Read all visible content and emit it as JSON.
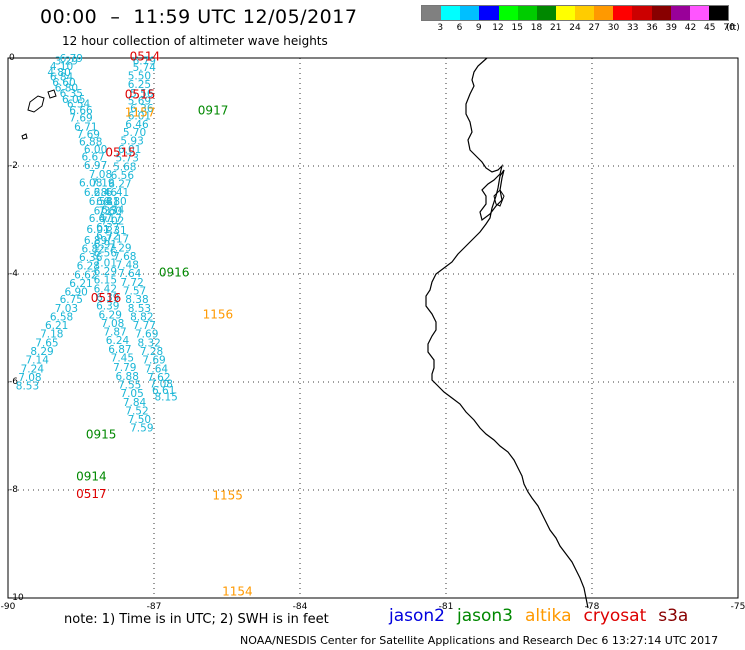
{
  "header": {
    "title": "00:00  –  11:59 UTC 12/05/2017",
    "subtitle": "12 hour collection of altimeter wave heights"
  },
  "colorbar": {
    "colors": [
      "#808080",
      "#00ffff",
      "#00bfff",
      "#0000ff",
      "#00ff00",
      "#00cc00",
      "#008800",
      "#ffff00",
      "#ffcc00",
      "#ff9900",
      "#ff0000",
      "#cc0000",
      "#880000",
      "#990099",
      "#ff55ff",
      "#000000"
    ],
    "labels": [
      "3",
      "6",
      "9",
      "12",
      "15",
      "18",
      "21",
      "24",
      "27",
      "30",
      "33",
      "36",
      "39",
      "42",
      "45",
      "70"
    ],
    "unit": "(ft)"
  },
  "chart_data": {
    "type": "scatter",
    "xlim": [
      -90,
      -75
    ],
    "ylim": [
      -10,
      0
    ],
    "xticks": [
      "-90",
      "-87",
      "-84",
      "-81",
      "-78",
      "-75"
    ],
    "yticks": [
      "0",
      "-2",
      "-4",
      "-6",
      "-8",
      "-10"
    ],
    "grid": true,
    "series": [
      {
        "name": "A",
        "color": "#1ab6d6",
        "points": [
          [
            -88.7,
            -0.07,
            "6.79"
          ],
          [
            -88.8,
            -0.12,
            "3.29"
          ],
          [
            -88.9,
            -0.22,
            "4.10"
          ],
          [
            -88.95,
            -0.33,
            "4.80"
          ],
          [
            -88.9,
            -0.42,
            "6.84"
          ],
          [
            -88.85,
            -0.52,
            "6.60"
          ],
          [
            -88.8,
            -0.62,
            "6.80"
          ],
          [
            -88.7,
            -0.72,
            "6.35"
          ],
          [
            -88.65,
            -0.83,
            "6.05"
          ],
          [
            -88.55,
            -0.92,
            "6.54"
          ],
          [
            -88.5,
            -1.04,
            "6.66"
          ],
          [
            -88.5,
            -1.18,
            "7.69"
          ],
          [
            -88.4,
            -1.34,
            "6.71"
          ],
          [
            -88.35,
            -1.48,
            "7.69"
          ],
          [
            -88.3,
            -1.62,
            "6.88"
          ],
          [
            -88.2,
            -1.76,
            "6.00"
          ],
          [
            -88.25,
            -1.9,
            "6.67"
          ],
          [
            -88.2,
            -2.06,
            "6.97"
          ],
          [
            -88.1,
            -2.22,
            "7.08"
          ],
          [
            -88.05,
            -2.38,
            "7.19"
          ],
          [
            -88.0,
            -2.56,
            "6.46"
          ],
          [
            -87.95,
            -2.72,
            "6.81"
          ],
          [
            -87.9,
            -2.9,
            "7.60"
          ],
          [
            -87.85,
            -3.08,
            "7.02"
          ],
          [
            -87.8,
            -3.26,
            "7.31"
          ],
          [
            -87.75,
            -3.42,
            "7.17"
          ],
          [
            -87.7,
            -3.58,
            "7.29"
          ],
          [
            -87.6,
            -3.74,
            "7.68"
          ],
          [
            -87.55,
            -3.9,
            "7.48"
          ],
          [
            -87.5,
            -4.06,
            "7.64"
          ],
          [
            -87.45,
            -4.22,
            "7.72"
          ],
          [
            -87.4,
            -4.38,
            "7.57"
          ],
          [
            -87.35,
            -4.54,
            "8.38"
          ],
          [
            -87.3,
            -4.7,
            "8.53"
          ],
          [
            -87.25,
            -4.86,
            "8.82"
          ],
          [
            -87.2,
            -5.02,
            "7.77"
          ],
          [
            -87.15,
            -5.18,
            "7.69"
          ],
          [
            -87.1,
            -5.34,
            "8.32"
          ],
          [
            -87.05,
            -5.5,
            "7.28"
          ],
          [
            -87.0,
            -5.66,
            "7.69"
          ],
          [
            -86.95,
            -5.82,
            "7.64"
          ],
          [
            -86.9,
            -5.98,
            "7.62"
          ],
          [
            -86.85,
            -6.1,
            "7.08"
          ],
          [
            -86.8,
            -6.22,
            "6.61"
          ],
          [
            -86.75,
            -6.34,
            "8.15"
          ]
        ]
      },
      {
        "name": "B",
        "color": "#1ab6d6",
        "points": [
          [
            -87.2,
            -0.12,
            "6.79"
          ],
          [
            -87.2,
            -0.24,
            "5.74"
          ],
          [
            -87.3,
            -0.4,
            "5.50"
          ],
          [
            -87.3,
            -0.56,
            "6.25"
          ],
          [
            -87.25,
            -0.72,
            "5.56"
          ],
          [
            -87.3,
            -0.86,
            "5.69"
          ],
          [
            -87.25,
            -1.0,
            "6.36"
          ],
          [
            -87.3,
            -1.14,
            "6.01"
          ],
          [
            -87.35,
            -1.3,
            "6.46"
          ],
          [
            -87.4,
            -1.44,
            "5.70"
          ],
          [
            -87.45,
            -1.6,
            "5.93"
          ],
          [
            -87.5,
            -1.76,
            "6.01"
          ],
          [
            -87.55,
            -1.92,
            "5.73"
          ],
          [
            -87.6,
            -2.08,
            "5.68"
          ],
          [
            -87.65,
            -2.24,
            "6.56"
          ],
          [
            -87.7,
            -2.4,
            "6.27"
          ],
          [
            -87.75,
            -2.56,
            "6.41"
          ],
          [
            -87.8,
            -2.72,
            "6.80"
          ],
          [
            -87.85,
            -2.88,
            "6.74"
          ],
          [
            -87.9,
            -3.04,
            "6.17"
          ],
          [
            -87.95,
            -3.2,
            "6.37"
          ],
          [
            -87.95,
            -3.36,
            "6.72"
          ],
          [
            -88.0,
            -3.52,
            "6.91"
          ],
          [
            -88.0,
            -3.68,
            "6.56"
          ],
          [
            -88.0,
            -3.86,
            "7.01"
          ],
          [
            -88.0,
            -4.02,
            "6.29"
          ],
          [
            -88.0,
            -4.18,
            "6.15"
          ],
          [
            -88.0,
            -4.34,
            "6.42"
          ],
          [
            -87.95,
            -4.5,
            "6.39"
          ],
          [
            -87.95,
            -4.66,
            "6.39"
          ],
          [
            -87.9,
            -4.82,
            "6.29"
          ],
          [
            -87.85,
            -4.98,
            "7.08"
          ],
          [
            -87.8,
            -5.14,
            "7.87"
          ],
          [
            -87.75,
            -5.3,
            "6.24"
          ],
          [
            -87.7,
            -5.46,
            "6.87"
          ],
          [
            -87.65,
            -5.62,
            "7.45"
          ],
          [
            -87.6,
            -5.8,
            "7.79"
          ],
          [
            -87.55,
            -5.96,
            "6.88"
          ],
          [
            -87.5,
            -6.12,
            "7.55"
          ],
          [
            -87.45,
            -6.28,
            "7.05"
          ],
          [
            -87.4,
            -6.44,
            "7.84"
          ],
          [
            -87.35,
            -6.6,
            "7.52"
          ],
          [
            -87.3,
            -6.76,
            "7.50"
          ],
          [
            -87.25,
            -6.92,
            "7.59"
          ]
        ]
      },
      {
        "name": "C",
        "color": "#1ab6d6",
        "points": [
          [
            -88.3,
            -2.38,
            "6.08"
          ],
          [
            -88.2,
            -2.56,
            "6.28"
          ],
          [
            -88.1,
            -2.72,
            "6.54"
          ],
          [
            -88.0,
            -2.9,
            "6.35"
          ],
          [
            -88.1,
            -3.04,
            "6.47"
          ],
          [
            -88.15,
            -3.24,
            "6.01"
          ],
          [
            -88.2,
            -3.44,
            "6.89"
          ],
          [
            -88.25,
            -3.6,
            "6.82"
          ],
          [
            -88.3,
            -3.76,
            "6.36"
          ],
          [
            -88.35,
            -3.92,
            "6.28"
          ],
          [
            -88.4,
            -4.08,
            "6.62"
          ],
          [
            -88.5,
            -4.24,
            "6.21"
          ],
          [
            -88.6,
            -4.4,
            "6.90"
          ],
          [
            -88.7,
            -4.54,
            "6.75"
          ],
          [
            -88.8,
            -4.7,
            "7.03"
          ],
          [
            -88.9,
            -4.86,
            "6.58"
          ],
          [
            -89.0,
            -5.02,
            "6.21"
          ],
          [
            -89.1,
            -5.18,
            "7.18"
          ],
          [
            -89.2,
            -5.34,
            "7.65"
          ],
          [
            -89.3,
            -5.5,
            "8.29"
          ],
          [
            -89.4,
            -5.66,
            "7.14"
          ],
          [
            -89.5,
            -5.82,
            "7.24"
          ],
          [
            -89.55,
            -5.98,
            "7.08"
          ],
          [
            -89.6,
            -6.14,
            "8.53"
          ]
        ]
      }
    ],
    "time_labels": [
      {
        "text": "0514",
        "color": "#dd0000",
        "x": -87.5,
        "y": -0.05
      },
      {
        "text": "0515",
        "color": "#dd0000",
        "x": -87.6,
        "y": -0.75
      },
      {
        "text": "1157",
        "color": "#ff9900",
        "x": -87.6,
        "y": -1.08
      },
      {
        "text": "0917",
        "color": "#008800",
        "x": -86.1,
        "y": -1.05
      },
      {
        "text": "0515",
        "color": "#dd0000",
        "x": -88.0,
        "y": -1.82
      },
      {
        "text": "0916",
        "color": "#008800",
        "x": -86.9,
        "y": -4.05
      },
      {
        "text": "0516",
        "color": "#dd0000",
        "x": -88.3,
        "y": -4.52
      },
      {
        "text": "1156",
        "color": "#ff9900",
        "x": -86.0,
        "y": -4.82
      },
      {
        "text": "0915",
        "color": "#008800",
        "x": -88.4,
        "y": -7.05
      },
      {
        "text": "0914",
        "color": "#008800",
        "x": -88.6,
        "y": -7.82
      },
      {
        "text": "0517",
        "color": "#dd0000",
        "x": -88.6,
        "y": -8.15
      },
      {
        "text": "1155",
        "color": "#ff9900",
        "x": -85.8,
        "y": -8.18
      },
      {
        "text": "1154",
        "color": "#ff9900",
        "x": -85.6,
        "y": -9.95
      }
    ]
  },
  "footer": {
    "note": "note:  1) Time is in UTC;  2) SWH is in feet",
    "credit": "NOAA/NESDIS Center for Satellite Applications and Research    Dec  6 13:27:14 UTC 2017",
    "satellites": [
      {
        "label": "jason2",
        "color": "#0000dd"
      },
      {
        "label": "jason3",
        "color": "#008800"
      },
      {
        "label": "altika",
        "color": "#ff9900"
      },
      {
        "label": "cryosat",
        "color": "#dd0000"
      },
      {
        "label": "s3a",
        "color": "#880000"
      }
    ]
  }
}
